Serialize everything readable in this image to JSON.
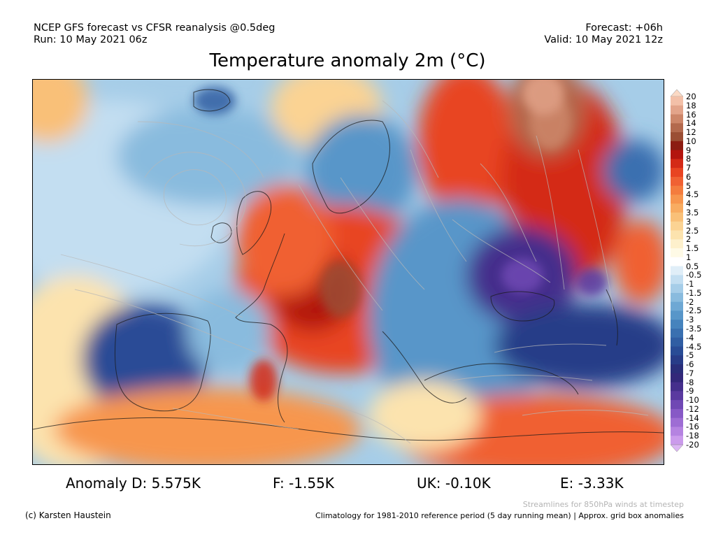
{
  "header": {
    "model_line": "NCEP GFS forecast vs CFSR reanalysis @0.5deg",
    "run_line": "Run: 10 May 2021 06z",
    "forecast_line": "Forecast: +06h",
    "valid_line": "Valid: 10 May 2021 12z"
  },
  "title": "Temperature anomaly 2m (°C)",
  "colorbar": {
    "labels": [
      "20",
      "18",
      "16",
      "14",
      "12",
      "10",
      "9",
      "8",
      "7",
      "6",
      "5",
      "4.5",
      "4",
      "3.5",
      "3",
      "2.5",
      "2",
      "1.5",
      "1",
      "0.5",
      "-0.5",
      "-1",
      "-1.5",
      "-2",
      "-2.5",
      "-3",
      "-3.5",
      "-4",
      "-4.5",
      "-5",
      "-6",
      "-7",
      "-8",
      "-9",
      "-10",
      "-12",
      "-14",
      "-16",
      "-18",
      "-20"
    ],
    "colors": [
      "#fbd9c4",
      "#f3c0a8",
      "#e3a48a",
      "#cd8669",
      "#b3694d",
      "#9b4e34",
      "#8c1c12",
      "#b3150f",
      "#d42a17",
      "#e84422",
      "#f06133",
      "#f47c3e",
      "#f7964e",
      "#f8ac61",
      "#f9c078",
      "#fbd393",
      "#fce3ae",
      "#fdf0cc",
      "#fefae6",
      "#ffffff",
      "#e0eef8",
      "#c3def1",
      "#a6cde8",
      "#89bbde",
      "#6ea8d4",
      "#5896c9",
      "#4683bd",
      "#3a70b0",
      "#305ea3",
      "#294c96",
      "#283c88",
      "#2a2e7a",
      "#33287a",
      "#452f8c",
      "#5a3aa0",
      "#7048b4",
      "#8759c6",
      "#9e6dd4",
      "#b583e1",
      "#cb9bec",
      "#dcb6f4"
    ]
  },
  "anomalies": {
    "d": "Anomaly D: 5.575K",
    "f": "F: -1.55K",
    "uk": "UK: -0.10K",
    "e": "E: -3.33K"
  },
  "footer": {
    "copyright": "(c) Karsten Haustein",
    "streamlines_note": "Streamlines for 850hPa winds at timestep",
    "climatology_note": "Climatology for 1981-2010 reference period (5 day running mean) | Approx. grid box anomalies"
  }
}
